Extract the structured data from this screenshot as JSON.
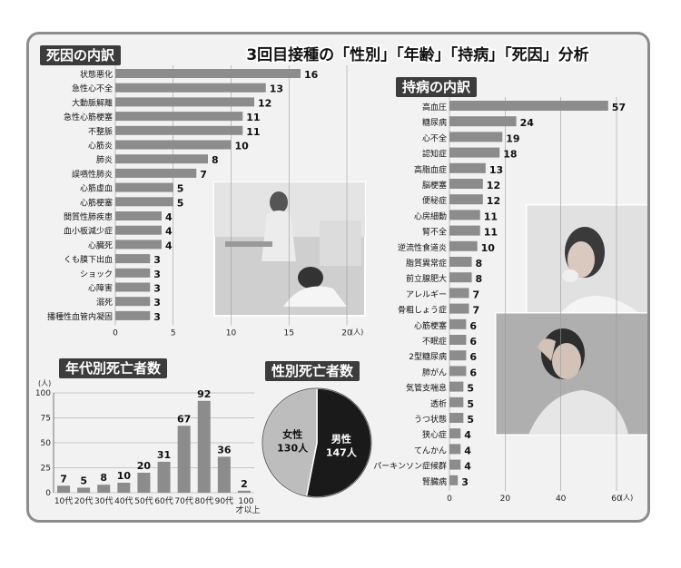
{
  "title": "3回目接種の「性別」「年齢」「持病」「死因」分析",
  "chart_data": [
    {
      "type": "bar",
      "title": "死因の内訳",
      "orientation": "horizontal",
      "unit": "(人)",
      "categories": [
        "状態悪化",
        "急性心不全",
        "大動脈解離",
        "急性心筋梗塞",
        "不整脈",
        "心筋炎",
        "肺炎",
        "誤嚥性肺炎",
        "心筋虚血",
        "心筋梗塞",
        "間質性肺疾患",
        "血小板減少症",
        "心臓死",
        "くも膜下出血",
        "ショック",
        "心障害",
        "溺死",
        "播種性血管内凝固"
      ],
      "values": [
        16,
        13,
        12,
        11,
        11,
        10,
        8,
        7,
        5,
        5,
        4,
        4,
        4,
        3,
        3,
        3,
        3,
        3
      ],
      "xlim": [
        0,
        20
      ],
      "xticks": [
        0,
        5,
        10,
        15,
        20
      ],
      "grid": true
    },
    {
      "type": "bar",
      "title": "持病の内訳",
      "orientation": "horizontal",
      "unit": "(人)",
      "categories": [
        "高血圧",
        "糖尿病",
        "心不全",
        "認知症",
        "高脂血症",
        "脳梗塞",
        "便秘症",
        "心房細動",
        "腎不全",
        "逆流性食道炎",
        "脂質異常症",
        "前立腺肥大",
        "アレルギー",
        "骨粗しょう症",
        "心筋梗塞",
        "不眠症",
        "2型糖尿病",
        "肺がん",
        "気管支喘息",
        "透析",
        "うつ状態",
        "狭心症",
        "てんかん",
        "パーキンソン症候群",
        "腎臓病"
      ],
      "values": [
        57,
        24,
        19,
        18,
        13,
        12,
        12,
        11,
        11,
        10,
        8,
        8,
        7,
        7,
        6,
        6,
        6,
        6,
        5,
        5,
        5,
        4,
        4,
        4,
        3
      ],
      "xlim": [
        0,
        60
      ],
      "xticks": [
        0,
        20,
        40,
        60
      ],
      "grid": true
    },
    {
      "type": "bar",
      "title": "年代別死亡者数",
      "orientation": "vertical",
      "unit": "(人)",
      "categories": [
        "10代",
        "20代",
        "30代",
        "40代",
        "50代",
        "60代",
        "70代",
        "80代",
        "90代",
        "100才以上"
      ],
      "values": [
        7,
        5,
        8,
        10,
        20,
        31,
        67,
        92,
        36,
        2
      ],
      "ylim": [
        0,
        100
      ],
      "yticks": [
        0,
        25,
        50,
        75,
        100
      ],
      "grid": true
    },
    {
      "type": "pie",
      "title": "性別死亡者数",
      "slices": [
        {
          "label": "女性",
          "value": 130,
          "display": "130人",
          "color": "#bdbdbd"
        },
        {
          "label": "男性",
          "value": 147,
          "display": "147人",
          "color": "#1a1a1a"
        }
      ]
    }
  ],
  "colors": {
    "bar": "#8c8c8c",
    "frame": "#8c8c8c",
    "background": "#f2f2f2",
    "title_bg": "#3c3c3c"
  }
}
